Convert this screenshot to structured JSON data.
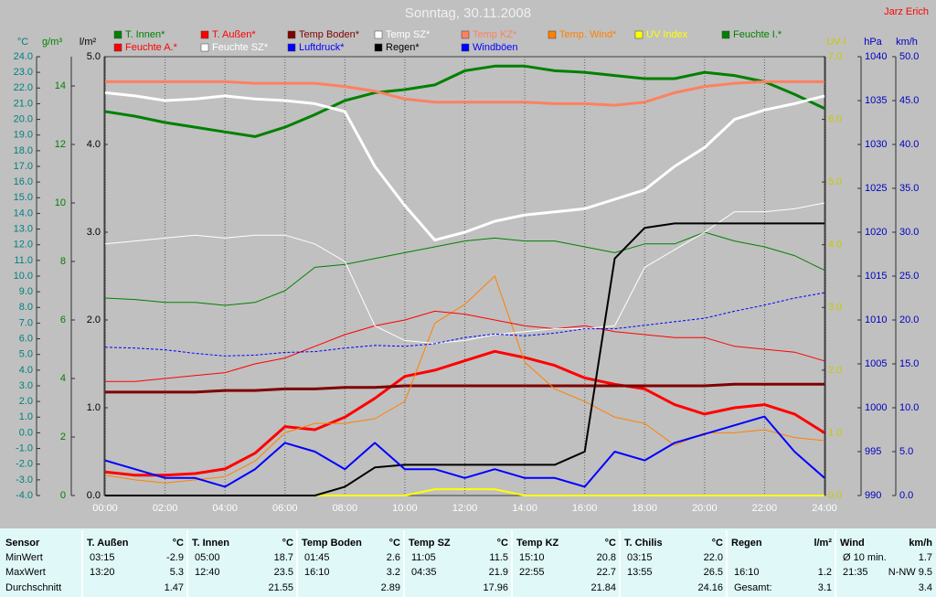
{
  "chart_data": {
    "type": "line",
    "title": "Sonntag, 30.11.2008",
    "author": "Jarz Erich",
    "x": [
      0,
      1,
      2,
      3,
      4,
      5,
      6,
      7,
      8,
      9,
      10,
      11,
      12,
      13,
      14,
      15,
      16,
      17,
      18,
      19,
      20,
      21,
      22,
      23,
      24
    ],
    "xlim": [
      0,
      24
    ],
    "xticks": [
      {
        "value": 0,
        "label": "00:00"
      },
      {
        "value": 2,
        "label": "02:00"
      },
      {
        "value": 4,
        "label": "04:00"
      },
      {
        "value": 6,
        "label": "06:00"
      },
      {
        "value": 8,
        "label": "08:00"
      },
      {
        "value": 10,
        "label": "10:00"
      },
      {
        "value": 12,
        "label": "12:00"
      },
      {
        "value": 14,
        "label": "14:00"
      },
      {
        "value": 16,
        "label": "16:00"
      },
      {
        "value": 18,
        "label": "18:00"
      },
      {
        "value": 20,
        "label": "20:00"
      },
      {
        "value": 22,
        "label": "22:00"
      },
      {
        "value": 24,
        "label": "24:00"
      }
    ],
    "grid": true,
    "axes": [
      {
        "label": "°C",
        "color": "#008080",
        "lim": [
          -4,
          24
        ],
        "ticks": [
          {
            "value": -4,
            "label": "-4.0"
          },
          {
            "value": -3,
            "label": "-3.0"
          },
          {
            "value": -2,
            "label": "-2.0"
          },
          {
            "value": -1,
            "label": "-1.0"
          },
          {
            "value": 0,
            "label": "0.0"
          },
          {
            "value": 1,
            "label": "1.0"
          },
          {
            "value": 2,
            "label": "2.0"
          },
          {
            "value": 3,
            "label": "3.0"
          },
          {
            "value": 4,
            "label": "4.0"
          },
          {
            "value": 5,
            "label": "5.0"
          },
          {
            "value": 6,
            "label": "6.0"
          },
          {
            "value": 7,
            "label": "7.0"
          },
          {
            "value": 8,
            "label": "8.0"
          },
          {
            "value": 9,
            "label": "9.0"
          },
          {
            "value": 10,
            "label": "10.0"
          },
          {
            "value": 11,
            "label": "11.0"
          },
          {
            "value": 12,
            "label": "12.0"
          },
          {
            "value": 13,
            "label": "13.0"
          },
          {
            "value": 14,
            "label": "14.0"
          },
          {
            "value": 15,
            "label": "15.0"
          },
          {
            "value": 16,
            "label": "16.0"
          },
          {
            "value": 17,
            "label": "17.0"
          },
          {
            "value": 18,
            "label": "18.0"
          },
          {
            "value": 19,
            "label": "19.0"
          },
          {
            "value": 20,
            "label": "20.0"
          },
          {
            "value": 21,
            "label": "21.0"
          },
          {
            "value": 22,
            "label": "22.0"
          },
          {
            "value": 23,
            "label": "23.0"
          },
          {
            "value": 24,
            "label": "24.0"
          }
        ]
      },
      {
        "label": "g/m³",
        "color": "#008000",
        "lim": [
          0,
          15
        ],
        "ticks": [
          0,
          2,
          4,
          6,
          8,
          10,
          12,
          14
        ]
      },
      {
        "label": "l/m²",
        "color": "#000000",
        "lim": [
          0,
          5
        ],
        "ticks": [
          {
            "value": 0,
            "label": "0.0"
          },
          {
            "value": 1,
            "label": "1.0"
          },
          {
            "value": 2,
            "label": "2.0"
          },
          {
            "value": 3,
            "label": "3.0"
          },
          {
            "value": 4,
            "label": "4.0"
          },
          {
            "value": 5,
            "label": "5.0"
          }
        ]
      },
      {
        "label": "UV-I",
        "color": "#c8c800",
        "lim": [
          0,
          7
        ],
        "ticks": [
          {
            "value": 0,
            "label": "0.0"
          },
          {
            "value": 1,
            "label": "1.0"
          },
          {
            "value": 2,
            "label": "2.0"
          },
          {
            "value": 3,
            "label": "3.0"
          },
          {
            "value": 4,
            "label": "4.0"
          },
          {
            "value": 5,
            "label": "5.0"
          },
          {
            "value": 6,
            "label": "6.0"
          },
          {
            "value": 7,
            "label": "7.0"
          }
        ]
      },
      {
        "label": "hPa",
        "color": "#0000c0",
        "lim": [
          990,
          1040
        ],
        "ticks": [
          990,
          995,
          1000,
          1005,
          1010,
          1015,
          1020,
          1025,
          1030,
          1035,
          1040
        ]
      },
      {
        "label": "km/h",
        "color": "#0000c0",
        "lim": [
          0,
          50
        ],
        "ticks": [
          {
            "value": 0,
            "label": "0.0"
          },
          {
            "value": 5,
            "label": "5.0"
          },
          {
            "value": 10,
            "label": "10.0"
          },
          {
            "value": 15,
            "label": "15.0"
          },
          {
            "value": 20,
            "label": "20.0"
          },
          {
            "value": 25,
            "label": "25.0"
          },
          {
            "value": 30,
            "label": "30.0"
          },
          {
            "value": 35,
            "label": "35.0"
          },
          {
            "value": 40,
            "label": "40.0"
          },
          {
            "value": 45,
            "label": "45.0"
          },
          {
            "value": 50,
            "label": "50.0"
          }
        ]
      }
    ],
    "series": [
      {
        "name": "T. Innen*",
        "color": "#008000",
        "width": 3,
        "axis": 0,
        "values": [
          20.5,
          20.2,
          19.8,
          19.5,
          19.2,
          18.9,
          19.5,
          20.3,
          21.2,
          21.7,
          21.9,
          22.2,
          23.1,
          23.4,
          23.4,
          23.1,
          23.0,
          22.8,
          22.6,
          22.6,
          23.0,
          22.8,
          22.4,
          21.6,
          20.7
        ]
      },
      {
        "name": "T. Außen*",
        "color": "#ff0000",
        "width": 3,
        "axis": 0,
        "values": [
          -2.5,
          -2.7,
          -2.7,
          -2.6,
          -2.3,
          -1.3,
          0.4,
          0.2,
          1.0,
          2.2,
          3.6,
          4.0,
          4.6,
          5.2,
          4.8,
          4.3,
          3.5,
          3.1,
          2.8,
          1.8,
          1.2,
          1.6,
          1.8,
          1.2,
          0.0
        ]
      },
      {
        "name": "Temp Boden*",
        "color": "#800000",
        "width": 3,
        "axis": 0,
        "values": [
          2.6,
          2.6,
          2.6,
          2.6,
          2.7,
          2.7,
          2.8,
          2.8,
          2.9,
          2.9,
          3.0,
          3.0,
          3.0,
          3.0,
          3.0,
          3.0,
          3.0,
          3.0,
          3.0,
          3.0,
          3.0,
          3.1,
          3.1,
          3.1,
          3.1
        ]
      },
      {
        "name": "Temp SZ*",
        "color": "#ffffff",
        "width": 3,
        "axis": 0,
        "values": [
          21.7,
          21.5,
          21.2,
          21.3,
          21.5,
          21.3,
          21.2,
          21.0,
          20.5,
          17.0,
          14.5,
          12.3,
          12.8,
          13.5,
          13.9,
          14.1,
          14.3,
          14.9,
          15.5,
          17.0,
          18.2,
          20.0,
          20.6,
          21.0,
          21.5
        ]
      },
      {
        "name": "Temp KZ*",
        "color": "#ff8060",
        "width": 3,
        "axis": 0,
        "values": [
          22.4,
          22.4,
          22.4,
          22.4,
          22.4,
          22.3,
          22.3,
          22.3,
          22.1,
          21.8,
          21.3,
          21.1,
          21.1,
          21.1,
          21.1,
          21.0,
          21.0,
          20.9,
          21.1,
          21.7,
          22.1,
          22.3,
          22.4,
          22.4,
          22.4
        ]
      },
      {
        "name": "Temp. Wind*",
        "color": "#ff8000",
        "width": 1,
        "axis": 0,
        "values": [
          -2.7,
          -3.0,
          -3.2,
          -3.0,
          -2.8,
          -1.8,
          0.0,
          0.6,
          0.6,
          0.9,
          2.0,
          7.0,
          8.2,
          10.0,
          4.5,
          2.8,
          2.0,
          1.0,
          0.6,
          -0.8,
          0.0,
          0.0,
          0.2,
          -0.3,
          -0.5
        ]
      },
      {
        "name": "UV Index",
        "color": "#ffff00",
        "width": 2,
        "axis": 3,
        "values": [
          0,
          0,
          0,
          0,
          0,
          0,
          0,
          0,
          0,
          0,
          0,
          0.1,
          0.1,
          0.1,
          0,
          0,
          0,
          0,
          0,
          0,
          0,
          0,
          0,
          0,
          0
        ]
      },
      {
        "name": "Feuchte I.*",
        "color": "#008000",
        "width": 1,
        "axis": 1,
        "values": [
          6.75,
          6.7,
          6.6,
          6.6,
          6.5,
          6.6,
          7.0,
          7.8,
          7.9,
          8.1,
          8.3,
          8.5,
          8.7,
          8.8,
          8.7,
          8.7,
          8.5,
          8.3,
          8.6,
          8.6,
          9.0,
          8.7,
          8.5,
          8.2,
          7.7
        ]
      },
      {
        "name": "Feuchte A.*",
        "color": "#ff0000",
        "width": 1,
        "axis": 1,
        "values": [
          3.9,
          3.9,
          4.0,
          4.1,
          4.2,
          4.5,
          4.7,
          5.1,
          5.5,
          5.8,
          6.0,
          6.3,
          6.2,
          6.0,
          5.8,
          5.7,
          5.8,
          5.6,
          5.5,
          5.4,
          5.4,
          5.1,
          5.0,
          4.9,
          4.6
        ]
      },
      {
        "name": "Feuchte SZ*",
        "color": "#ffffff",
        "width": 1,
        "axis": 1,
        "values": [
          8.6,
          8.7,
          8.8,
          8.9,
          8.8,
          8.9,
          8.9,
          8.6,
          8.0,
          5.8,
          5.3,
          5.2,
          5.3,
          5.5,
          5.6,
          5.7,
          5.7,
          5.8,
          7.8,
          8.4,
          9.0,
          9.7,
          9.7,
          9.8,
          10.0
        ]
      },
      {
        "name": "Luftdruck*",
        "color": "#0000ff",
        "width": 1,
        "axis": 4,
        "dashed": true,
        "values": [
          1006.9,
          1006.8,
          1006.6,
          1006.2,
          1005.9,
          1006.0,
          1006.3,
          1006.4,
          1006.8,
          1007.1,
          1007.0,
          1007.3,
          1008.0,
          1008.4,
          1008.2,
          1008.5,
          1009.0,
          1009.0,
          1009.4,
          1009.8,
          1010.2,
          1011.0,
          1011.7,
          1012.5,
          1013.1
        ]
      },
      {
        "name": "Regen*",
        "color": "#000000",
        "width": 2,
        "axis": 2,
        "values": [
          0,
          0,
          0,
          0,
          0,
          0,
          0,
          0,
          0.1,
          0.32,
          0.35,
          0.35,
          0.35,
          0.35,
          0.35,
          0.35,
          0.5,
          2.7,
          3.05,
          3.1,
          3.1,
          3.1,
          3.1,
          3.1,
          3.1
        ]
      },
      {
        "name": "Windböen",
        "color": "#0000ff",
        "width": 2,
        "axis": 5,
        "values": [
          4,
          3,
          2,
          2,
          1,
          3,
          6,
          5,
          3,
          6,
          3,
          3,
          2,
          3,
          2,
          2,
          1,
          5,
          4,
          6,
          7,
          8,
          9,
          5,
          2
        ]
      }
    ]
  },
  "table": {
    "row_labels": [
      "Sensor",
      "MinWert",
      "MaxWert",
      "Durchschnitt"
    ],
    "groups": [
      {
        "name": "T. Außen",
        "unit": "°C",
        "min": [
          "03:15",
          "-2.9"
        ],
        "max": [
          "13:20",
          "5.3"
        ],
        "avg": [
          "1.47"
        ]
      },
      {
        "name": "T. Innen",
        "unit": "°C",
        "min": [
          "05:00",
          "18.7"
        ],
        "max": [
          "12:40",
          "23.5"
        ],
        "avg": [
          "21.55"
        ]
      },
      {
        "name": "Temp Boden",
        "unit": "°C",
        "min": [
          "01:45",
          "2.6"
        ],
        "max": [
          "16:10",
          "3.2"
        ],
        "avg": [
          "2.89"
        ]
      },
      {
        "name": "Temp SZ",
        "unit": "°C",
        "min": [
          "11:05",
          "11.5"
        ],
        "max": [
          "04:35",
          "21.9"
        ],
        "avg": [
          "17.96"
        ]
      },
      {
        "name": "Temp KZ",
        "unit": "°C",
        "min": [
          "15:10",
          "20.8"
        ],
        "max": [
          "22:55",
          "22.7"
        ],
        "avg": [
          "21.84"
        ]
      },
      {
        "name": "T. Chilis",
        "unit": "°C",
        "min": [
          "03:15",
          "22.0"
        ],
        "max": [
          "13:55",
          "26.5"
        ],
        "avg": [
          "24.16"
        ]
      },
      {
        "name": "Regen",
        "unit": "l/m²",
        "max": [
          "16:10",
          "1.2"
        ],
        "avg": [
          "Gesamt:",
          "3.1"
        ]
      },
      {
        "name": "Wind",
        "unit": "km/h",
        "min": [
          "Ø 10 min.",
          "1.7"
        ],
        "max": [
          "21:35",
          "N-NW 9.5"
        ],
        "avg": [
          "3.4"
        ]
      }
    ]
  }
}
